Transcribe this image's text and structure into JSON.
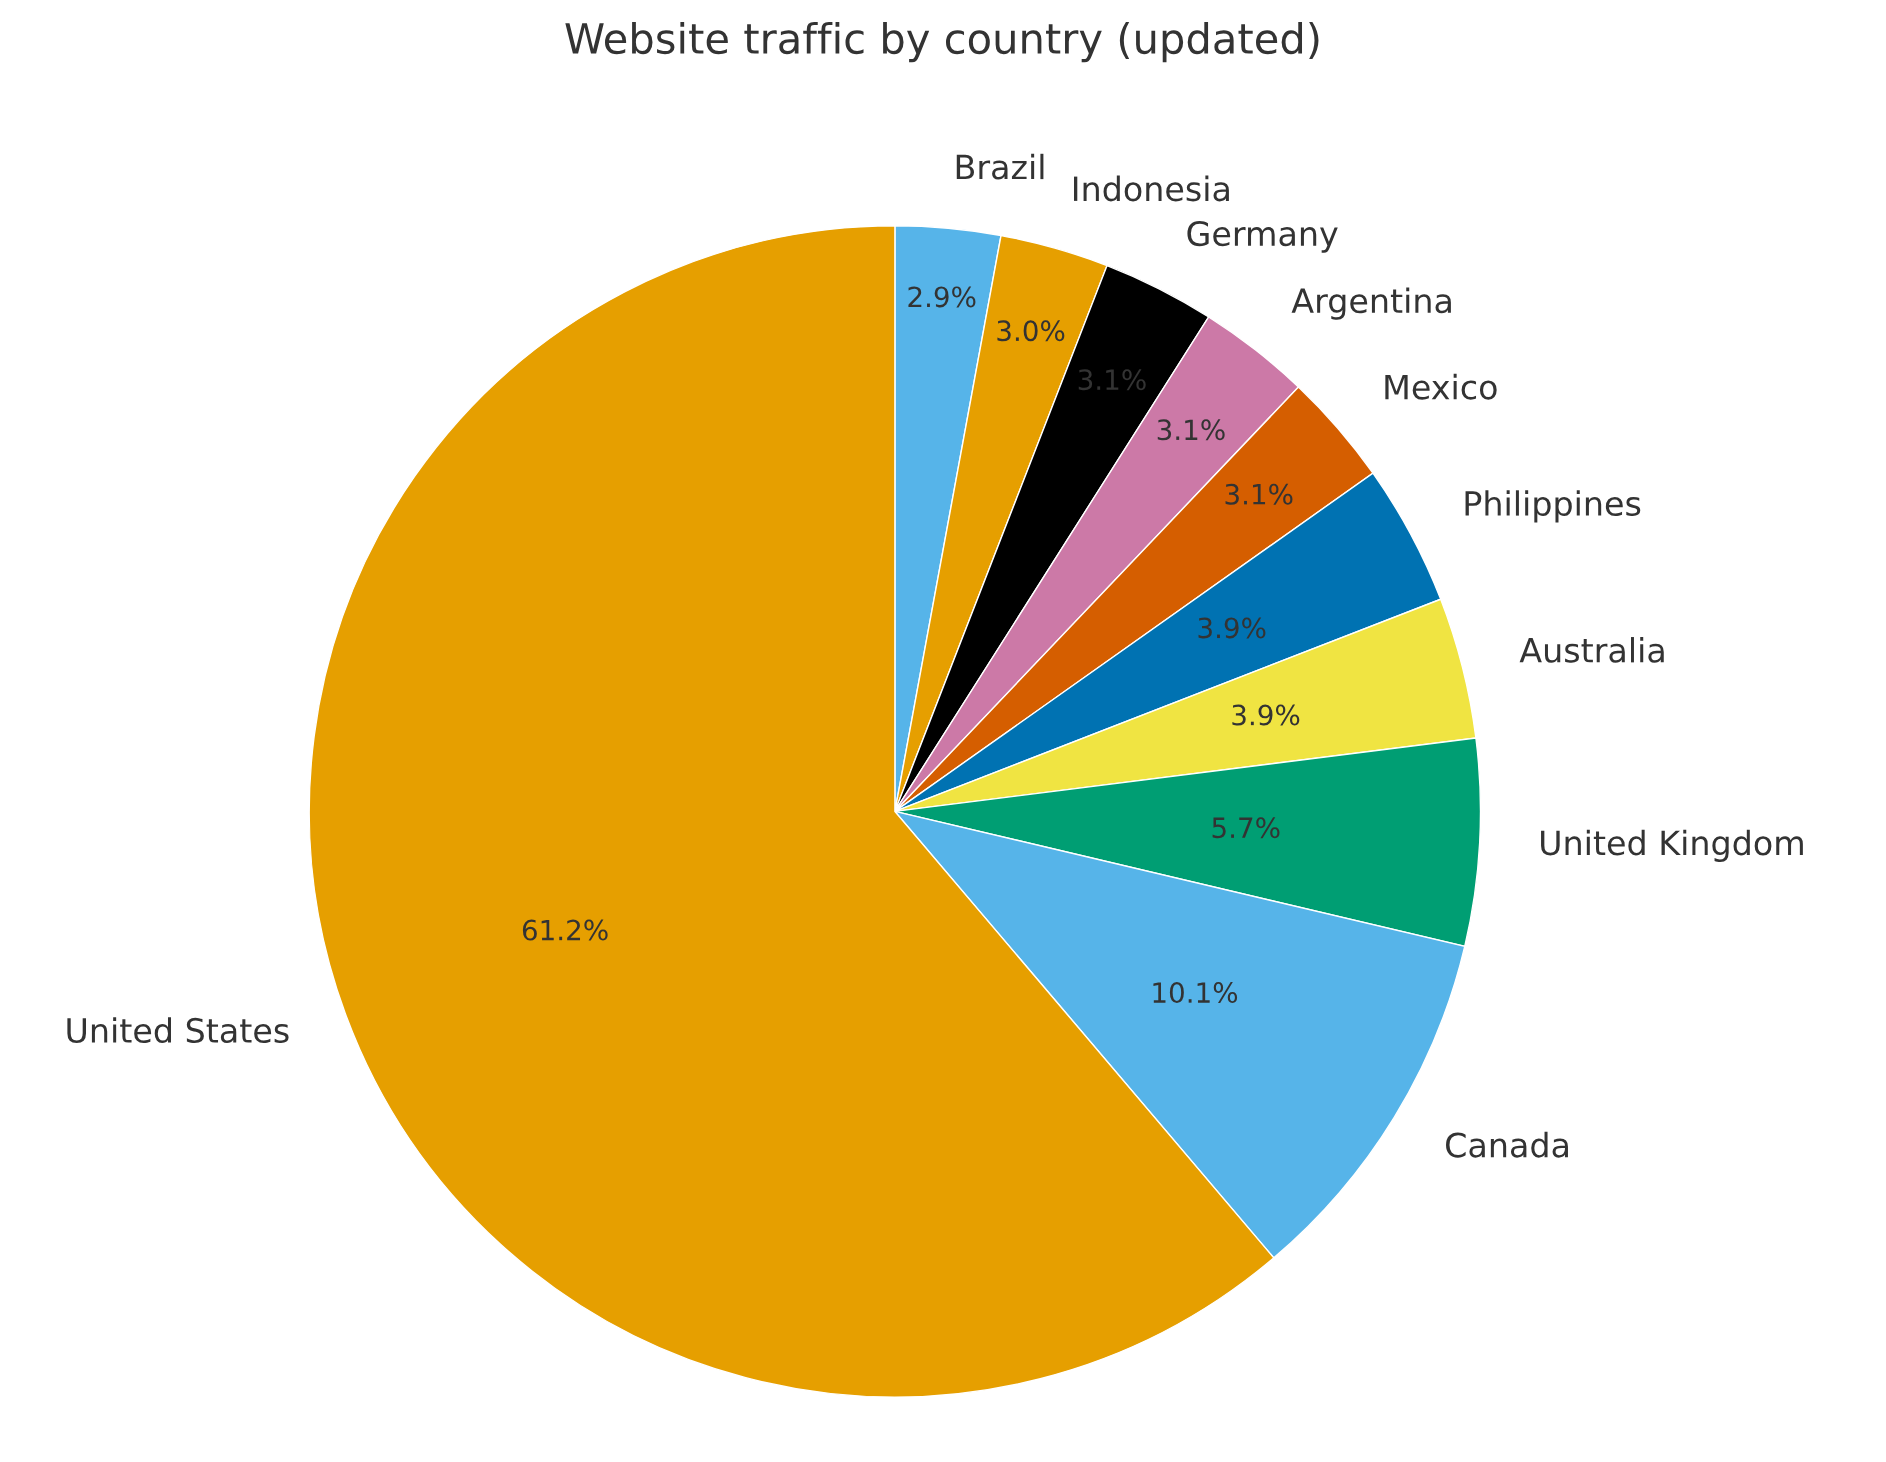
{
  "chart_data": {
    "type": "pie",
    "title": "Website traffic by country (updated)",
    "categories": [
      "Brazil",
      "Indonesia",
      "Germany",
      "Argentina",
      "Mexico",
      "Philippines",
      "Australia",
      "United Kingdom",
      "Canada",
      "United States"
    ],
    "values": [
      2.9,
      3.0,
      3.1,
      3.1,
      3.1,
      3.9,
      3.9,
      5.7,
      10.1,
      61.2
    ],
    "colors": [
      "#56b4e9",
      "#e69f00",
      "#000000",
      "#cc79a7",
      "#d55e00",
      "#0072b2",
      "#f0e442",
      "#009e73",
      "#56b4e9",
      "#e69f00"
    ],
    "value_labels": [
      "2.9%",
      "3.0%",
      "3.1%",
      "3.1%",
      "3.1%",
      "3.9%",
      "3.9%",
      "5.7%",
      "10.1%",
      "61.2%"
    ]
  }
}
